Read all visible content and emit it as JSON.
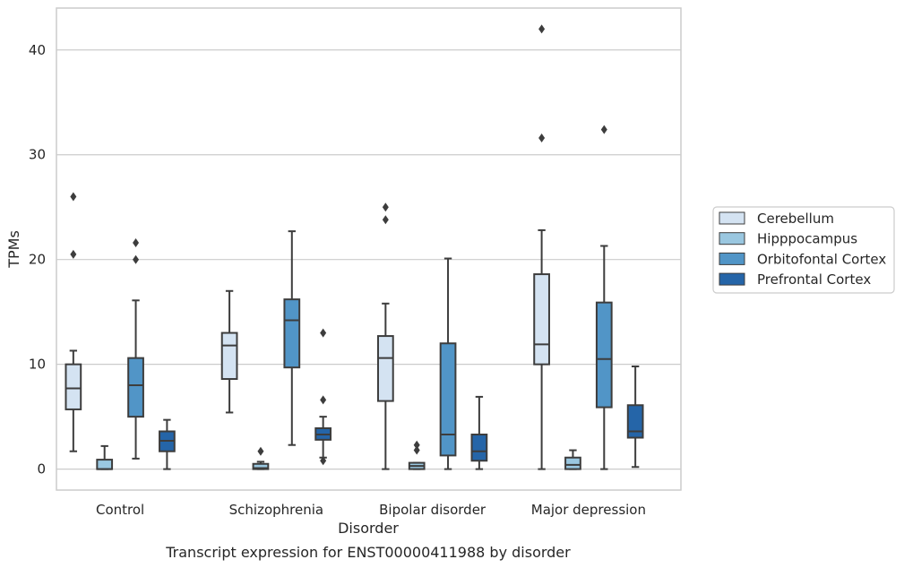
{
  "caption": "Transcript expression for ENST00000411988 by disorder",
  "chart_data": {
    "type": "boxplot",
    "xlabel": "Disorder",
    "ylabel": "TPMs",
    "ylim": [
      -2,
      44
    ],
    "yticks": [
      0,
      10,
      20,
      30,
      40
    ],
    "grid": "horizontal",
    "legend_position": "right",
    "categories": [
      "Control",
      "Schizophrenia",
      "Bipolar disorder",
      "Major depression"
    ],
    "series": [
      {
        "name": "Cerebellum",
        "color": "#d4e3f2",
        "boxes": [
          {
            "whisker_low": 1.7,
            "q1": 5.7,
            "median": 7.7,
            "q3": 10.0,
            "whisker_high": 11.3,
            "outliers": [
              20.5,
              26.0
            ]
          },
          {
            "whisker_low": 5.4,
            "q1": 8.6,
            "median": 11.8,
            "q3": 13.0,
            "whisker_high": 17.0,
            "outliers": []
          },
          {
            "whisker_low": 0.0,
            "q1": 6.5,
            "median": 10.6,
            "q3": 12.7,
            "whisker_high": 15.8,
            "outliers": [
              23.8,
              25.0
            ]
          },
          {
            "whisker_low": 0.0,
            "q1": 10.0,
            "median": 11.9,
            "q3": 18.6,
            "whisker_high": 22.8,
            "outliers": [
              31.6,
              42.0
            ]
          }
        ]
      },
      {
        "name": "Hipppocampus",
        "color": "#9ac7e0",
        "boxes": [
          {
            "whisker_low": 0.0,
            "q1": 0.0,
            "median": 0.0,
            "q3": 0.9,
            "whisker_high": 2.2,
            "outliers": []
          },
          {
            "whisker_low": 0.0,
            "q1": 0.0,
            "median": 0.1,
            "q3": 0.5,
            "whisker_high": 0.7,
            "outliers": [
              1.7
            ]
          },
          {
            "whisker_low": 0.0,
            "q1": 0.0,
            "median": 0.3,
            "q3": 0.6,
            "whisker_high": 0.6,
            "outliers": [
              1.8,
              2.3
            ]
          },
          {
            "whisker_low": 0.0,
            "q1": 0.0,
            "median": 0.4,
            "q3": 1.1,
            "whisker_high": 1.8,
            "outliers": []
          }
        ]
      },
      {
        "name": "Orbitofontal Cortex",
        "color": "#5195c7",
        "boxes": [
          {
            "whisker_low": 1.0,
            "q1": 5.0,
            "median": 8.0,
            "q3": 10.6,
            "whisker_high": 16.1,
            "outliers": [
              20.0,
              21.6
            ]
          },
          {
            "whisker_low": 2.3,
            "q1": 9.7,
            "median": 14.2,
            "q3": 16.2,
            "whisker_high": 22.7,
            "outliers": []
          },
          {
            "whisker_low": 0.0,
            "q1": 1.3,
            "median": 3.3,
            "q3": 12.0,
            "whisker_high": 20.1,
            "outliers": []
          },
          {
            "whisker_low": 0.0,
            "q1": 5.9,
            "median": 10.5,
            "q3": 15.9,
            "whisker_high": 21.3,
            "outliers": [
              32.4
            ]
          }
        ]
      },
      {
        "name": "Prefrontal Cortex",
        "color": "#2565a8",
        "boxes": [
          {
            "whisker_low": 0.0,
            "q1": 1.7,
            "median": 2.7,
            "q3": 3.6,
            "whisker_high": 4.7,
            "outliers": []
          },
          {
            "whisker_low": 1.1,
            "q1": 2.8,
            "median": 3.3,
            "q3": 3.9,
            "whisker_high": 5.0,
            "outliers": [
              0.8,
              6.6,
              13.0
            ]
          },
          {
            "whisker_low": 0.0,
            "q1": 0.8,
            "median": 1.7,
            "q3": 3.3,
            "whisker_high": 6.9,
            "outliers": []
          },
          {
            "whisker_low": 0.2,
            "q1": 3.0,
            "median": 3.6,
            "q3": 6.1,
            "whisker_high": 9.8,
            "outliers": []
          }
        ]
      }
    ]
  }
}
